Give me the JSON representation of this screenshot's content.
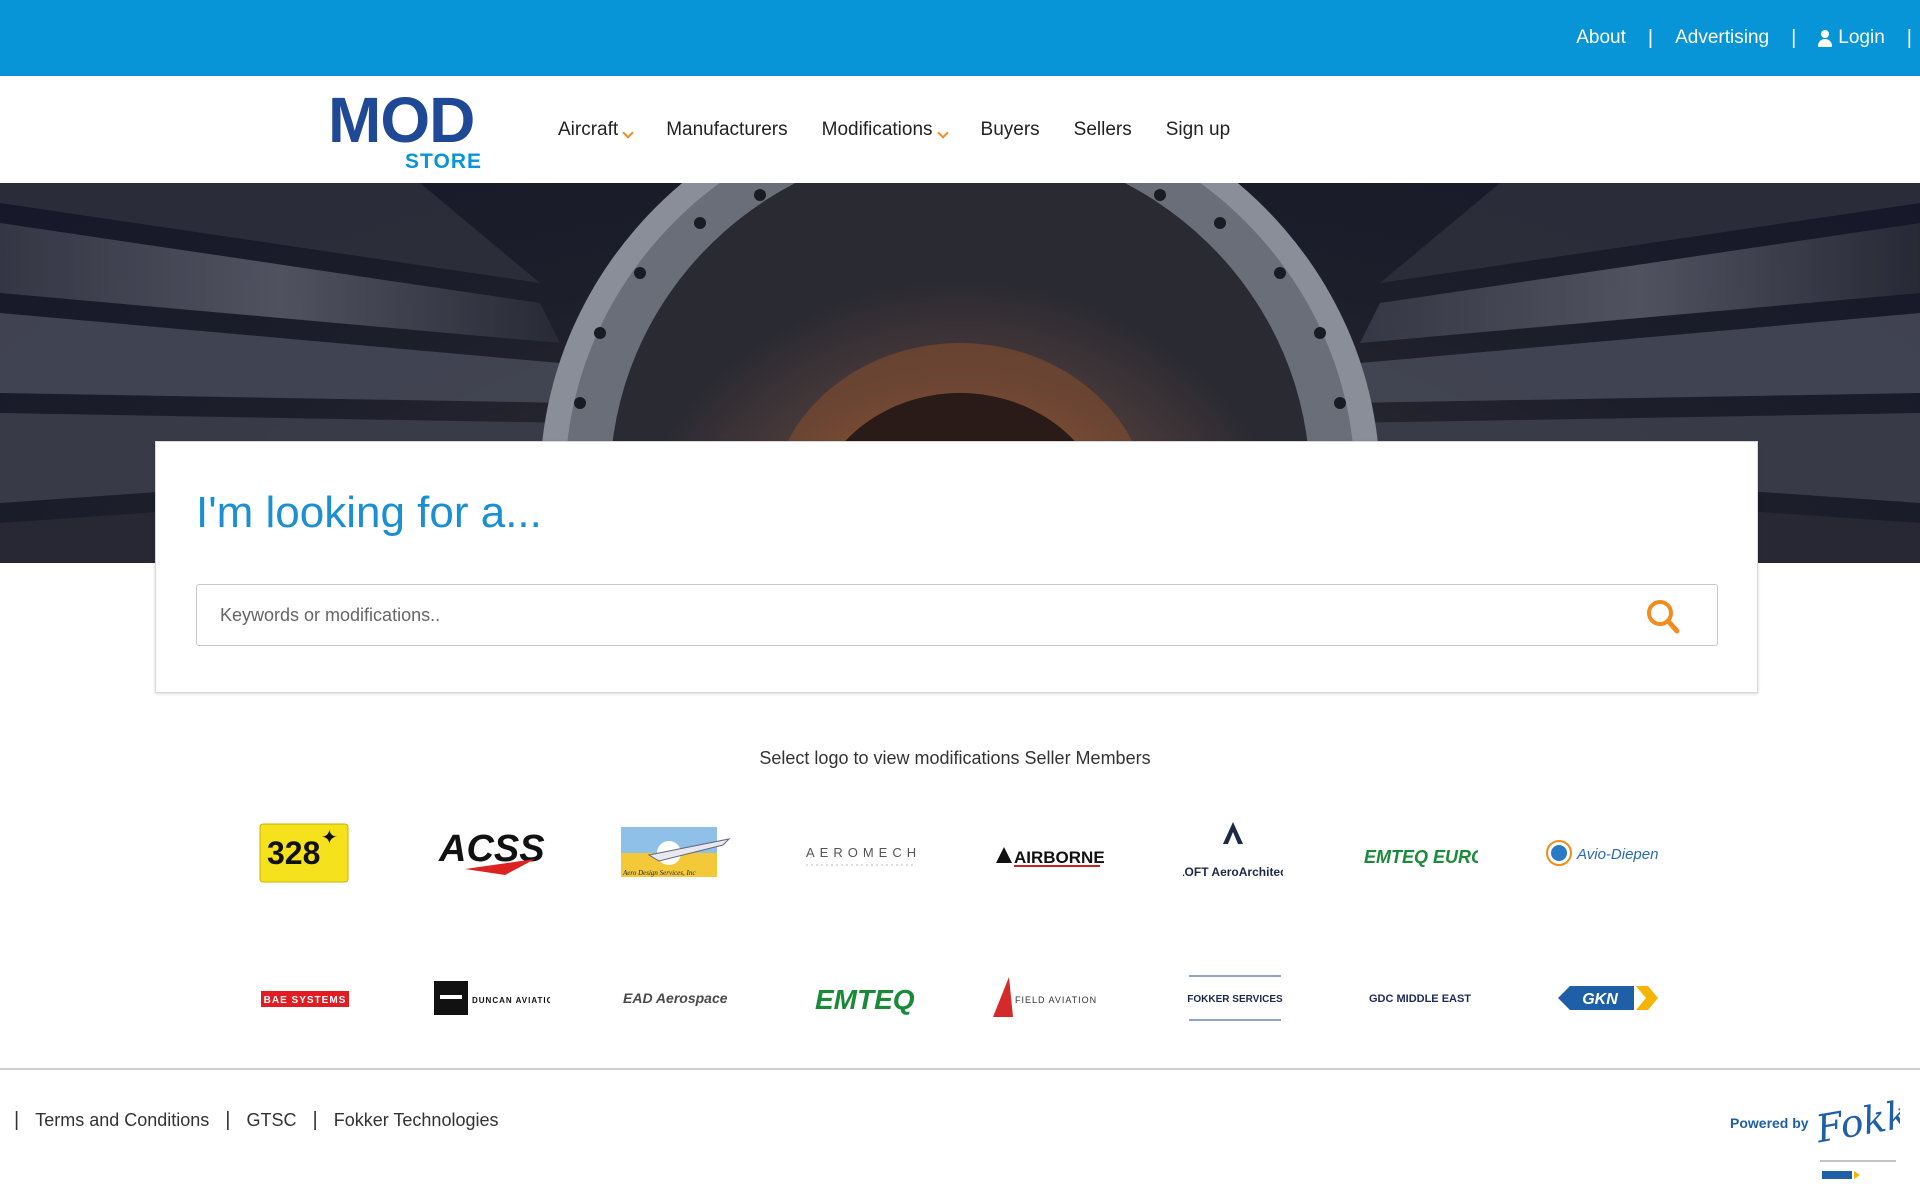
{
  "topbar": {
    "links": [
      {
        "label": "About"
      },
      {
        "label": "Advertising"
      },
      {
        "label": "Login",
        "icon": "user-icon"
      }
    ],
    "colors": {
      "background": "#0795d8"
    }
  },
  "brand": {
    "name": "MOD",
    "sub": "STORE"
  },
  "nav": {
    "items": [
      {
        "label": "Aircraft",
        "dropdown": true
      },
      {
        "label": "Manufacturers",
        "dropdown": false
      },
      {
        "label": "Modifications",
        "dropdown": true
      },
      {
        "label": "Buyers",
        "dropdown": false
      },
      {
        "label": "Sellers",
        "dropdown": false
      },
      {
        "label": "Sign up",
        "dropdown": false
      }
    ]
  },
  "search": {
    "heading": "I'm looking for a...",
    "placeholder": "Keywords or modifications..",
    "value": "",
    "icon": "search-icon"
  },
  "sellers": {
    "caption": "Select logo to view modifications Seller Members",
    "row1": [
      "328",
      "ACSS",
      "Aero Design Services, Inc",
      "AEROMECH",
      "AIRBORNE",
      "ALOFT AeroArchitects",
      "EMTEQ EUROPE",
      "Avio-Diepen"
    ],
    "row2": [
      "BAE SYSTEMS",
      "DUNCAN AVIATION",
      "EAD Aerospace",
      "EMTEQ",
      "FIELD AVIATION",
      "FOKKER SERVICES",
      "GDC MIDDLE EAST",
      "GKN"
    ]
  },
  "footer": {
    "links": [
      "Terms and Conditions",
      "GTSC",
      "Fokker Technologies"
    ],
    "powered_by": "Powered by",
    "powered_brand": "Fokker"
  }
}
